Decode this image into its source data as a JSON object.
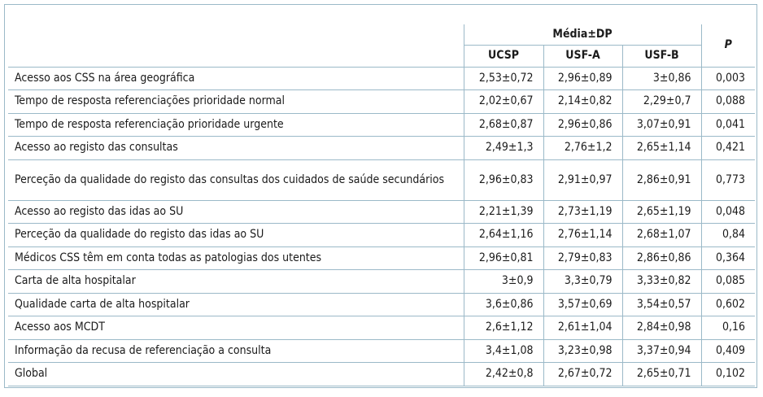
{
  "table": {
    "group": "Média±DP",
    "p": "P",
    "columns": [
      "UCSP",
      "USF-A",
      "USF-B"
    ],
    "rows": [
      [
        "Acesso aos CSS na área geográfica",
        "2,53±0,72",
        "2,96±0,89",
        "3±0,86",
        "0,003"
      ],
      [
        "Tempo de resposta referenciações prioridade normal",
        "2,02±0,67",
        "2,14±0,82",
        "2,29±0,7",
        "0,088"
      ],
      [
        "Tempo de resposta referenciação prioridade urgente",
        "2,68±0,87",
        "2,96±0,86",
        "3,07±0,91",
        "0,041"
      ],
      [
        "Acesso ao registo das consultas",
        "2,49±1,3",
        "2,76±1,2",
        "2,65±1,14",
        "0,421"
      ],
      [
        "Perceção da qualidade do registo das consultas dos cuidados de saúde secundários",
        "2,96±0,83",
        "2,91±0,97",
        "2,86±0,91",
        "0,773"
      ],
      [
        "Acesso ao registo das idas ao SU",
        "2,21±1,39",
        "2,73±1,19",
        "2,65±1,19",
        "0,048"
      ],
      [
        "Perceção da qualidade do registo das idas ao SU",
        "2,64±1,16",
        "2,76±1,14",
        "2,68±1,07",
        "0,84"
      ],
      [
        "Médicos CSS têm em conta todas as patologias dos utentes",
        "2,96±0,81",
        "2,79±0,83",
        "2,86±0,86",
        "0,364"
      ],
      [
        "Carta de alta hospitalar",
        "3±0,9",
        "3,3±0,79",
        "3,33±0,82",
        "0,085"
      ],
      [
        "Qualidade carta de alta hospitalar",
        "3,6±0,86",
        "3,57±0,69",
        "3,54±0,57",
        "0,602"
      ],
      [
        "Acesso aos MCDT",
        "2,6±1,12",
        "2,61±1,04",
        "2,84±0,98",
        "0,16"
      ],
      [
        "Informação da recusa de referenciação a consulta",
        "3,4±1,08",
        "3,23±0,98",
        "3,37±0,94",
        "0,409"
      ],
      [
        "Global",
        "2,42±0,8",
        "2,67±0,72",
        "2,65±0,71",
        "0,102"
      ]
    ]
  }
}
